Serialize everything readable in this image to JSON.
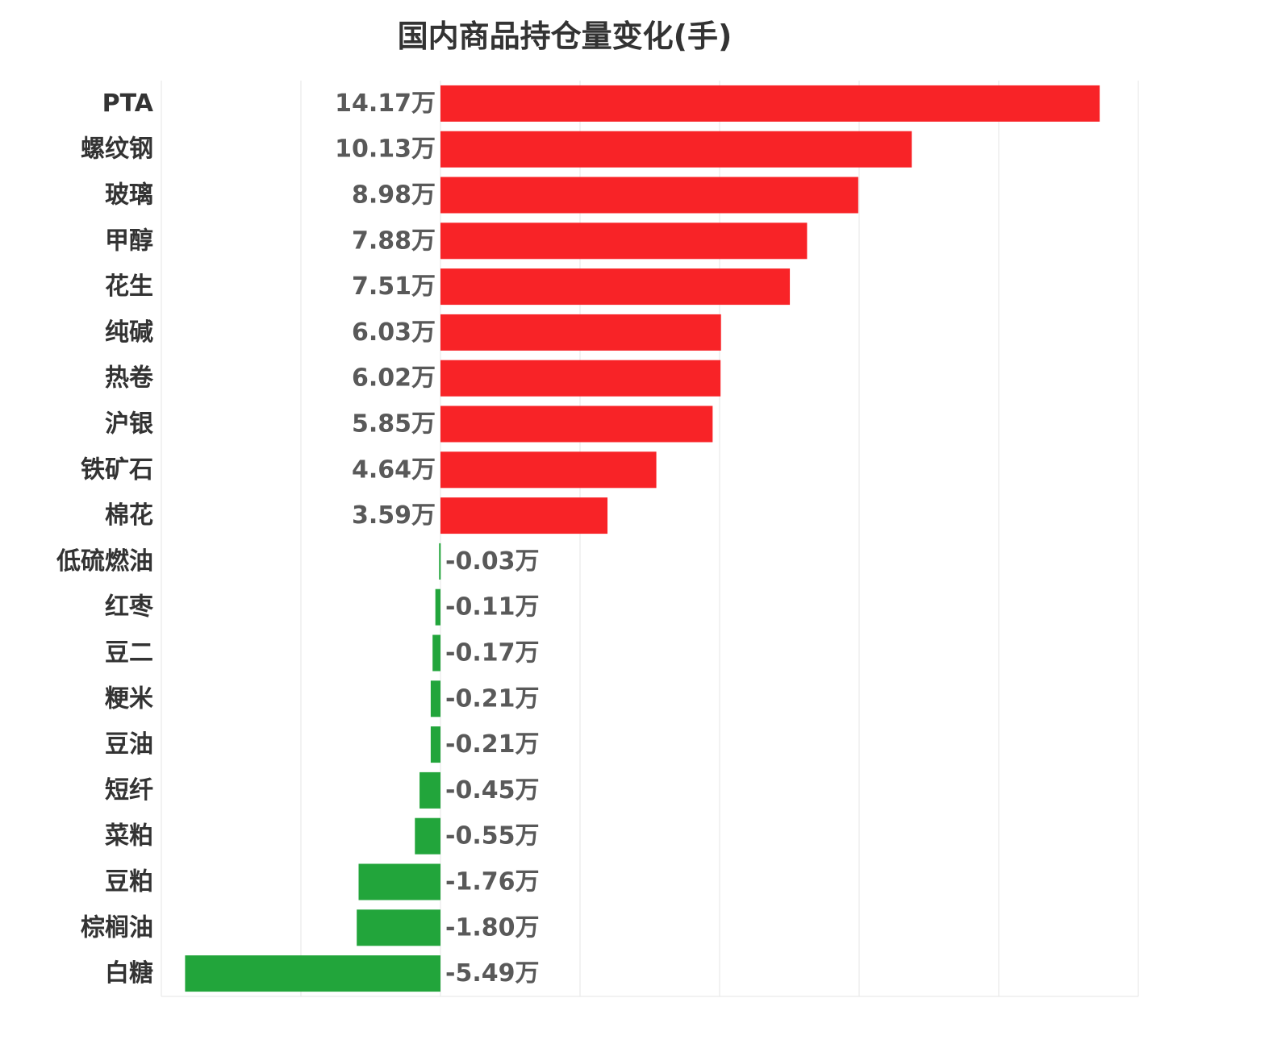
{
  "chart_data": {
    "type": "bar",
    "orientation": "horizontal",
    "title": "国内商品持仓量变化(手)",
    "unit_suffix": "万",
    "categories": [
      "PTA",
      "螺纹钢",
      "玻璃",
      "甲醇",
      "花生",
      "纯碱",
      "热卷",
      "沪银",
      "铁矿石",
      "棉花",
      "低硫燃油",
      "红枣",
      "豆二",
      "粳米",
      "豆油",
      "短纤",
      "菜粕",
      "豆粕",
      "棕榈油",
      "白糖"
    ],
    "values": [
      14.17,
      10.13,
      8.98,
      7.88,
      7.51,
      6.03,
      6.02,
      5.85,
      4.64,
      3.59,
      -0.03,
      -0.11,
      -0.17,
      -0.21,
      -0.21,
      -0.45,
      -0.55,
      -1.76,
      -1.8,
      -5.49
    ],
    "value_labels": [
      "14.17万",
      "10.13万",
      "8.98万",
      "7.88万",
      "7.51万",
      "6.03万",
      "6.02万",
      "5.85万",
      "4.64万",
      "3.59万",
      "-0.03万",
      "-0.11万",
      "-0.17万",
      "-0.21万",
      "-0.21万",
      "-0.45万",
      "-0.55万",
      "-1.76万",
      "-1.80万",
      "-5.49万"
    ],
    "xlim": [
      -6,
      15
    ],
    "grid": true,
    "legend": "none",
    "colors": {
      "positive": "#f82327",
      "negative": "#22a53b",
      "grid": "#e6e6e6"
    }
  }
}
